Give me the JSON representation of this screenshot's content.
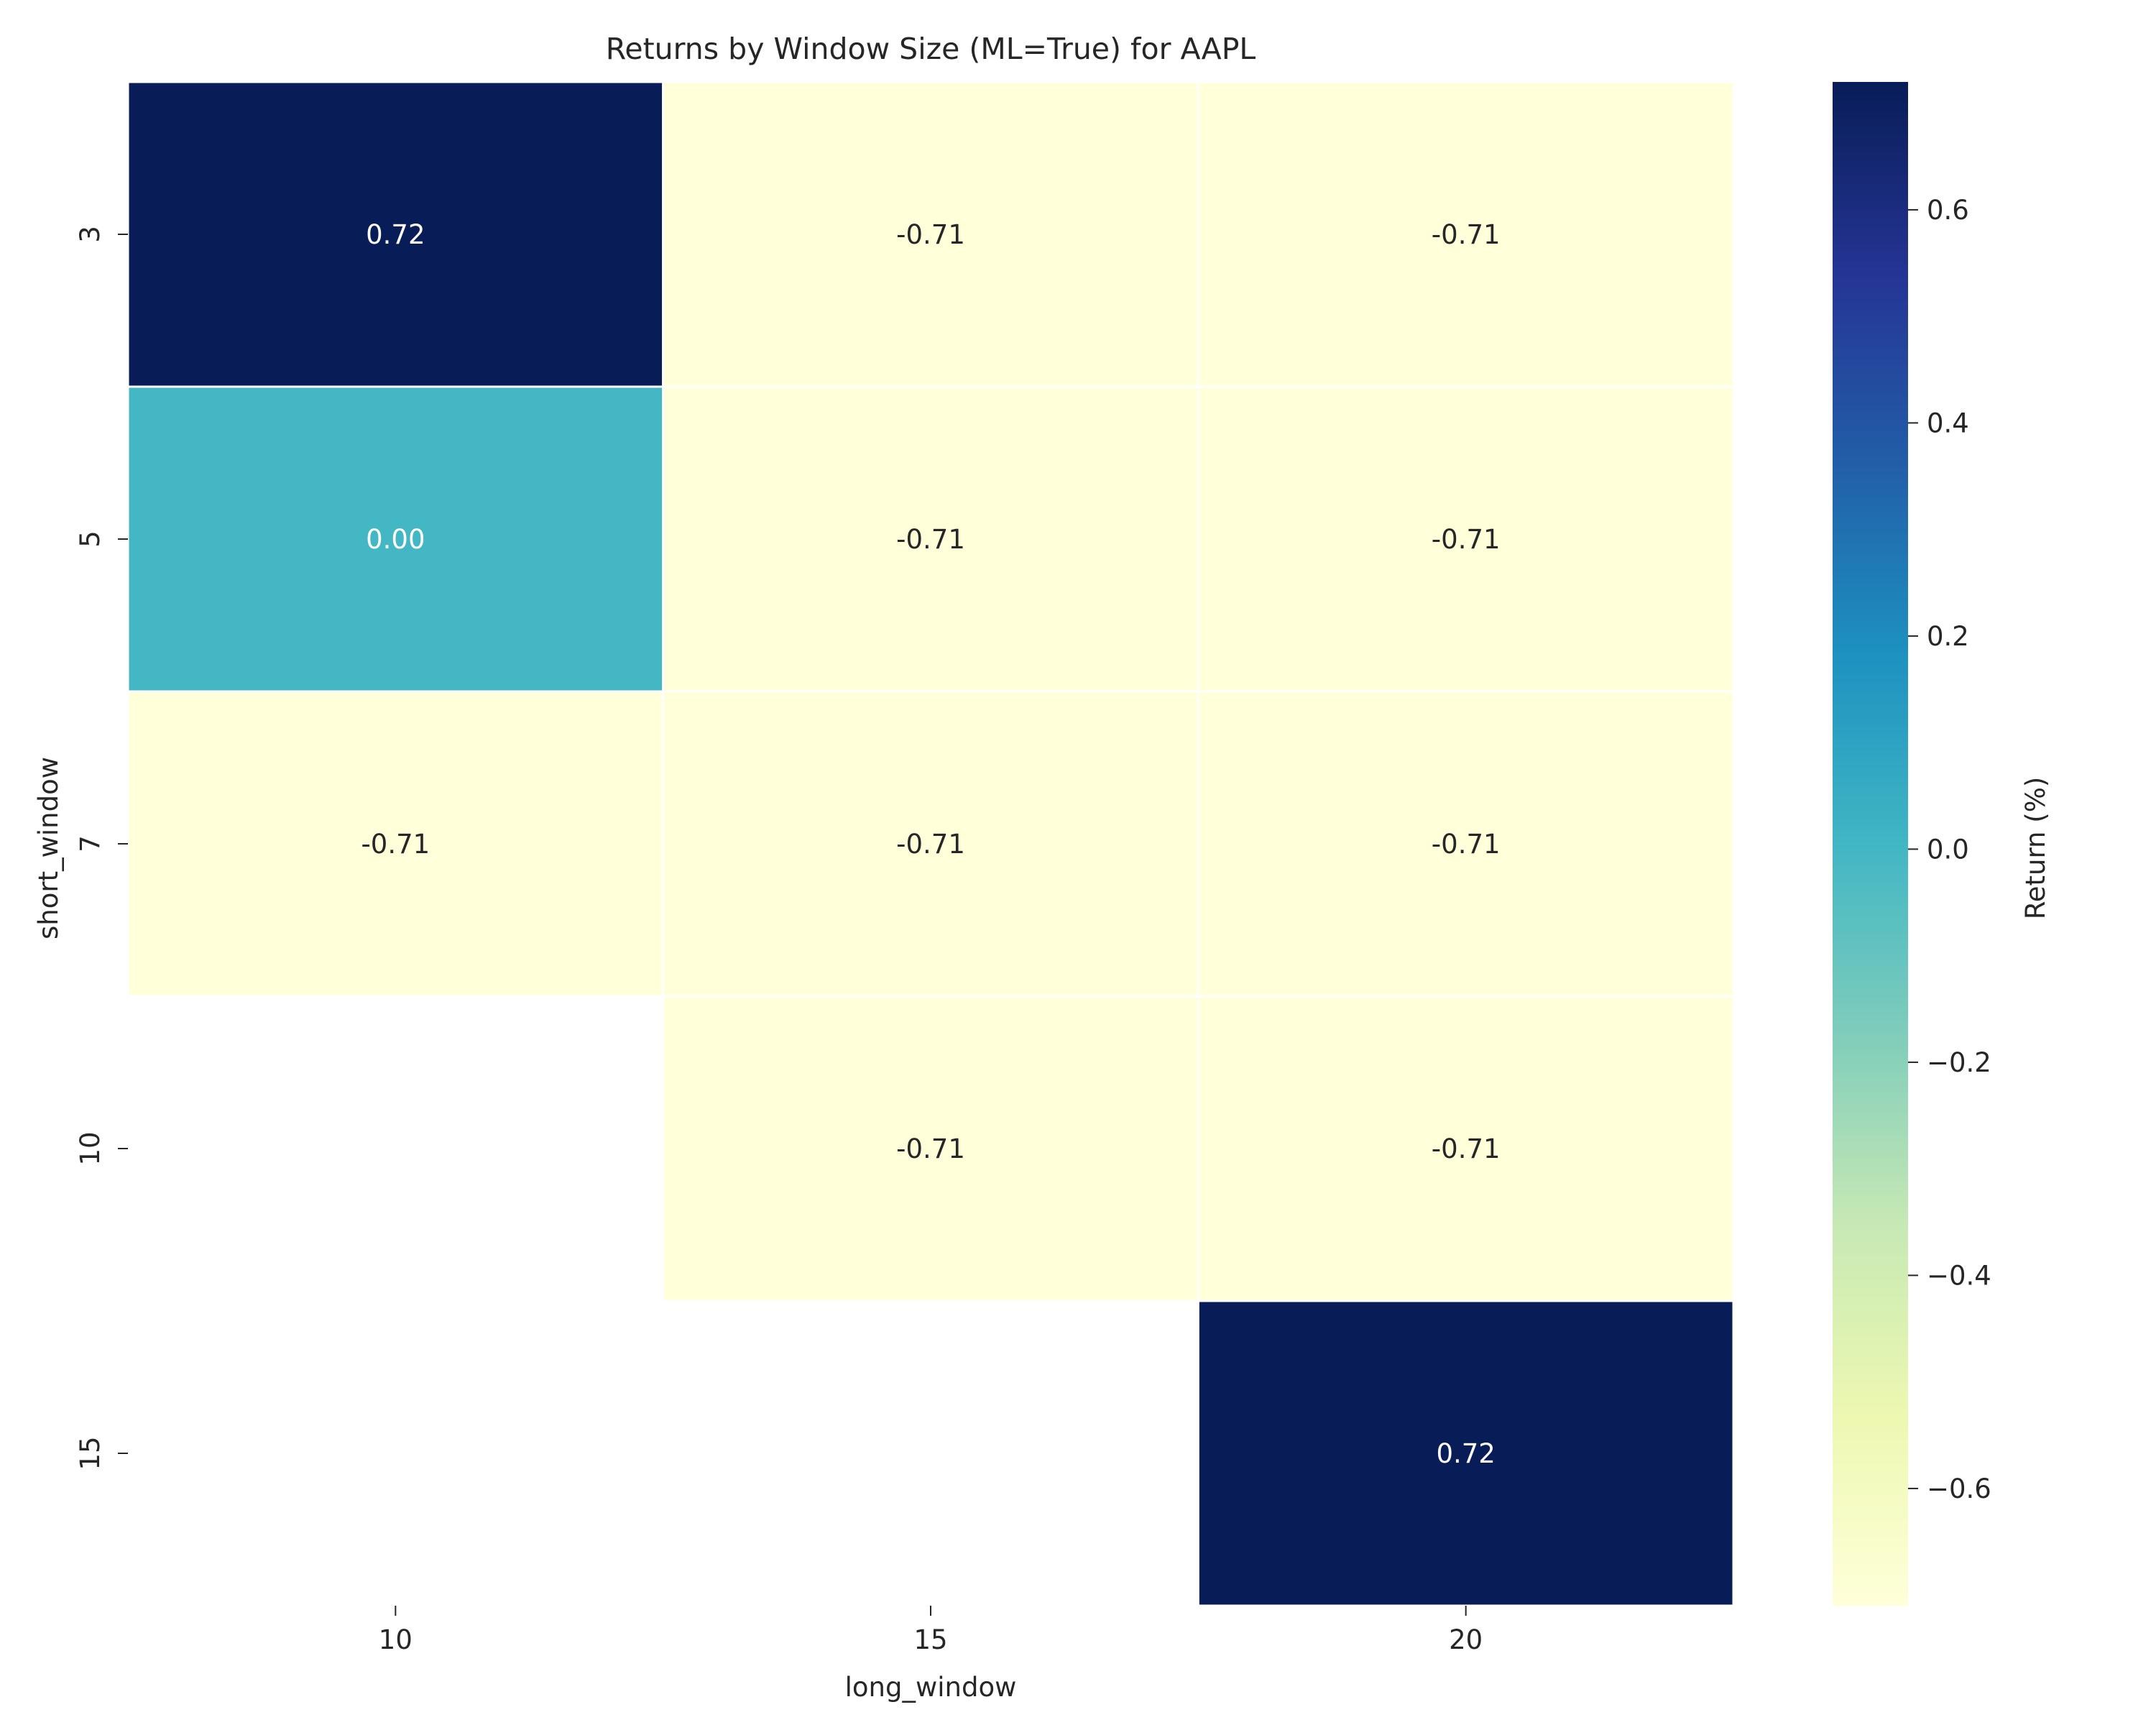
{
  "chart_data": {
    "type": "heatmap",
    "title": "Returns by Window Size (ML=True) for AAPL",
    "xlabel": "long_window",
    "ylabel": "short_window",
    "x_categories": [
      "10",
      "15",
      "20"
    ],
    "y_categories": [
      "3",
      "5",
      "7",
      "10",
      "15"
    ],
    "values": [
      [
        0.72,
        -0.71,
        -0.71
      ],
      [
        0.0,
        -0.71,
        -0.71
      ],
      [
        -0.71,
        -0.71,
        -0.71
      ],
      [
        null,
        -0.71,
        -0.71
      ],
      [
        null,
        null,
        0.72
      ]
    ],
    "cell_labels": [
      [
        "0.72",
        "-0.71",
        "-0.71"
      ],
      [
        "0.00",
        "-0.71",
        "-0.71"
      ],
      [
        "-0.71",
        "-0.71",
        "-0.71"
      ],
      [
        "",
        "-0.71",
        "-0.71"
      ],
      [
        "",
        "",
        "0.72"
      ]
    ],
    "colormap": "YlGnBu",
    "vmin": -0.71,
    "vmax": 0.72,
    "colorbar": {
      "label": "Return (%)",
      "ticks": [
        0.6,
        0.4,
        0.2,
        0.0,
        -0.2,
        -0.4,
        -0.6
      ],
      "tick_labels": [
        "0.6",
        "0.4",
        "0.2",
        "0.0",
        "−0.2",
        "−0.4",
        "−0.6"
      ]
    },
    "colors": {
      "low": "#ffffd9",
      "mid": "#41b6c4",
      "high": "#081d58",
      "cell_border": "#ffffff"
    },
    "grid": false,
    "legend": "colorbar-right"
  }
}
